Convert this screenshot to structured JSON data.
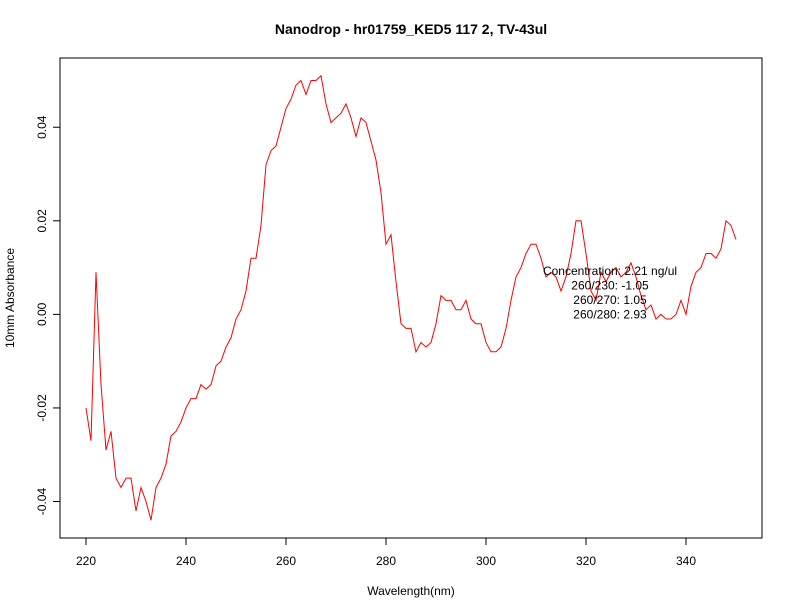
{
  "chart_data": {
    "type": "line",
    "title": "Nanodrop - hr01759_KED5 117 2, TV-43ul",
    "x_label": "Wavelength(nm)",
    "y_label": "10mm Absorbance",
    "x": [
      220,
      221,
      222,
      223,
      224,
      225,
      226,
      227,
      228,
      229,
      230,
      231,
      232,
      233,
      234,
      235,
      236,
      237,
      238,
      239,
      240,
      241,
      242,
      243,
      244,
      245,
      246,
      247,
      248,
      249,
      250,
      251,
      252,
      253,
      254,
      255,
      256,
      257,
      258,
      259,
      260,
      261,
      262,
      263,
      264,
      265,
      266,
      267,
      268,
      269,
      270,
      271,
      272,
      273,
      274,
      275,
      276,
      277,
      278,
      279,
      280,
      281,
      282,
      283,
      284,
      285,
      286,
      287,
      288,
      289,
      290,
      291,
      292,
      293,
      294,
      295,
      296,
      297,
      298,
      299,
      300,
      301,
      302,
      303,
      304,
      305,
      306,
      307,
      308,
      309,
      310,
      311,
      312,
      313,
      314,
      315,
      316,
      317,
      318,
      319,
      320,
      321,
      322,
      323,
      324,
      325,
      326,
      327,
      328,
      329,
      330,
      331,
      332,
      333,
      334,
      335,
      336,
      337,
      338,
      339,
      340,
      341,
      342,
      343,
      344,
      345,
      346,
      347,
      348,
      349,
      350
    ],
    "series": [
      {
        "name": "Absorbance",
        "color": "#ff0000",
        "values": [
          -0.02,
          -0.027,
          0.009,
          -0.015,
          -0.029,
          -0.025,
          -0.035,
          -0.037,
          -0.035,
          -0.035,
          -0.042,
          -0.037,
          -0.04,
          -0.044,
          -0.037,
          -0.035,
          -0.032,
          -0.026,
          -0.025,
          -0.023,
          -0.02,
          -0.018,
          -0.018,
          -0.015,
          -0.016,
          -0.015,
          -0.011,
          -0.01,
          -0.007,
          -0.005,
          -0.001,
          0.001,
          0.005,
          0.012,
          0.012,
          0.019,
          0.032,
          0.035,
          0.036,
          0.04,
          0.044,
          0.046,
          0.049,
          0.05,
          0.047,
          0.05,
          0.05,
          0.051,
          0.045,
          0.041,
          0.042,
          0.043,
          0.045,
          0.042,
          0.038,
          0.042,
          0.041,
          0.037,
          0.033,
          0.026,
          0.015,
          0.017,
          0.007,
          -0.002,
          -0.003,
          -0.003,
          -0.008,
          -0.006,
          -0.007,
          -0.006,
          -0.002,
          0.004,
          0.003,
          0.003,
          0.001,
          0.001,
          0.003,
          -0.001,
          -0.002,
          -0.002,
          -0.006,
          -0.008,
          -0.008,
          -0.007,
          -0.003,
          0.003,
          0.008,
          0.01,
          0.013,
          0.015,
          0.015,
          0.012,
          0.008,
          0.009,
          0.008,
          0.005,
          0.008,
          0.013,
          0.02,
          0.02,
          0.013,
          0.005,
          0.003,
          0.009,
          0.007,
          0.009,
          0.01,
          0.008,
          0.009,
          0.011,
          0.008,
          0.004,
          0.001,
          0.002,
          -0.001,
          0.0,
          -0.001,
          -0.001,
          0.0,
          0.003,
          0.0,
          0.006,
          0.009,
          0.01,
          0.013,
          0.013,
          0.012,
          0.014,
          0.02,
          0.019,
          0.016
        ]
      }
    ],
    "xlim": [
      214.8,
      355.2
    ],
    "ylim": [
      -0.0478,
      0.0548
    ],
    "xticks": [
      220,
      240,
      260,
      280,
      300,
      320,
      340
    ],
    "yticks": [
      -0.04,
      -0.02,
      {
        "value": 0,
        "label": "0.00"
      },
      0.02,
      0.04
    ],
    "annotations": [
      "Concentration: 2.21 ng/ul",
      "260/230: -1.05",
      "260/270: 1.05",
      "260/280: 2.93"
    ]
  }
}
